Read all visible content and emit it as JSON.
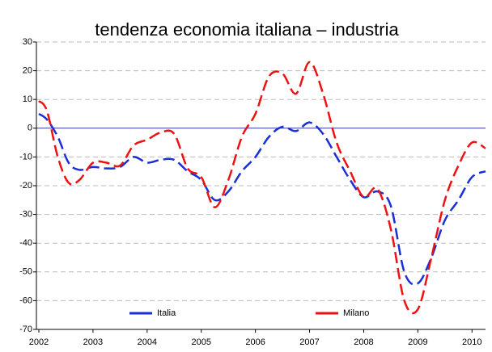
{
  "chart_data": {
    "type": "line",
    "title": "tendenza economia italiana – industria",
    "x": [
      2002.0,
      2002.15,
      2002.35,
      2002.55,
      2002.75,
      2003.0,
      2003.25,
      2003.5,
      2003.75,
      2004.0,
      2004.25,
      2004.5,
      2004.75,
      2005.0,
      2005.25,
      2005.5,
      2005.75,
      2006.0,
      2006.25,
      2006.5,
      2006.75,
      2007.0,
      2007.25,
      2007.5,
      2007.75,
      2008.0,
      2008.25,
      2008.5,
      2008.75,
      2009.0,
      2009.25,
      2009.5,
      2009.75,
      2010.0,
      2010.25
    ],
    "series": [
      {
        "name": "Italia",
        "color": "#1a2fd6",
        "values": [
          5,
          3,
          -3,
          -12,
          -14.5,
          -13.5,
          -14,
          -13.5,
          -10,
          -12,
          -11,
          -11,
          -15,
          -18,
          -25,
          -22,
          -15,
          -10,
          -3,
          0.5,
          -1,
          2,
          -2,
          -10,
          -18,
          -24,
          -22,
          -27,
          -50,
          -54,
          -45,
          -32,
          -25,
          -17,
          -15
        ]
      },
      {
        "name": "Milano",
        "color": "#ee1111",
        "values": [
          9.5,
          6,
          -10,
          -19,
          -18,
          -12,
          -12,
          -13,
          -6,
          -4,
          -1.5,
          -2,
          -14,
          -17,
          -27.5,
          -18,
          -3,
          5,
          18,
          19,
          12,
          23,
          12,
          -5,
          -15,
          -24,
          -21,
          -35,
          -60,
          -63,
          -45,
          -25,
          -13,
          -5,
          -7
        ]
      }
    ],
    "xlim": [
      2001.955,
      2010.25
    ],
    "xticks": [
      2002,
      2003,
      2004,
      2005,
      2006,
      2007,
      2008,
      2009,
      2010
    ],
    "ylim": [
      -70,
      30
    ],
    "yticks": [
      -70,
      -60,
      -50,
      -40,
      -30,
      -20,
      -10,
      0,
      10,
      20,
      30
    ],
    "grid": true,
    "legend": "bottom"
  }
}
